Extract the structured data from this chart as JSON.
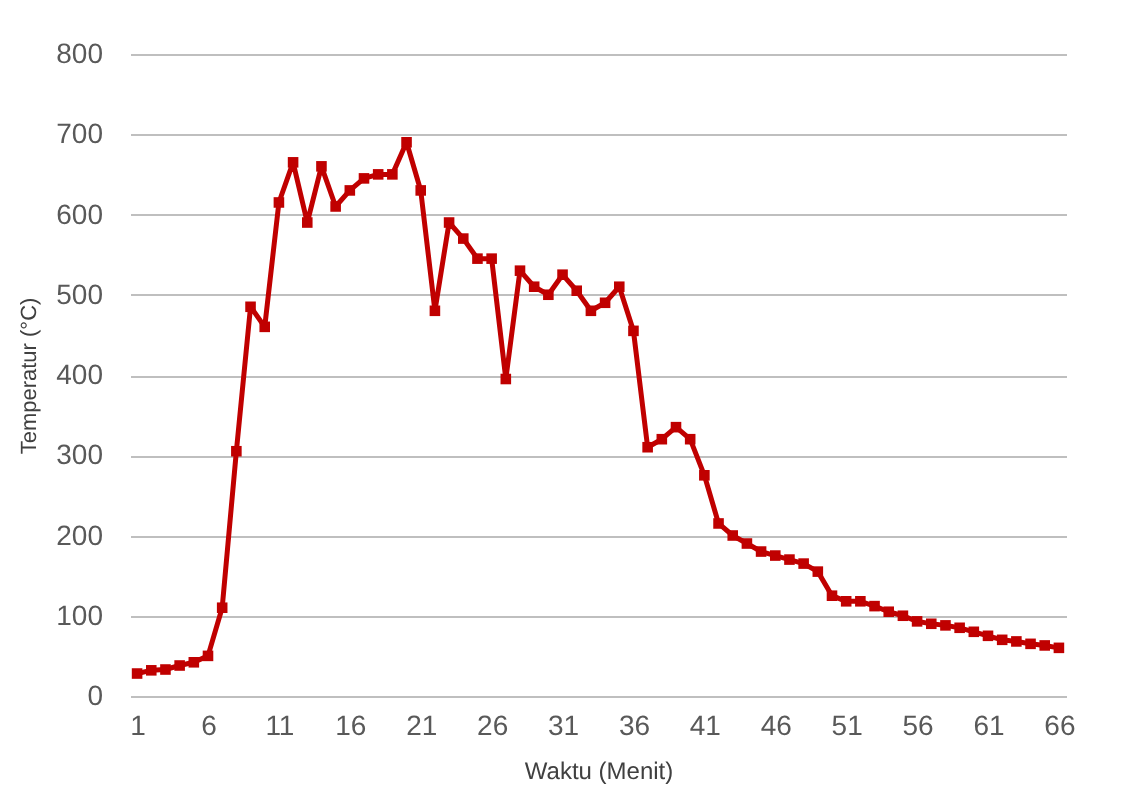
{
  "chart_data": {
    "type": "line",
    "xlabel": "Waktu (Menit)",
    "ylabel": "Temperatur (°C)",
    "x": [
      1,
      2,
      3,
      4,
      5,
      6,
      7,
      8,
      9,
      10,
      11,
      12,
      13,
      14,
      15,
      16,
      17,
      18,
      19,
      20,
      21,
      22,
      23,
      24,
      25,
      26,
      27,
      28,
      29,
      30,
      31,
      32,
      33,
      34,
      35,
      36,
      37,
      38,
      39,
      40,
      41,
      42,
      43,
      44,
      45,
      46,
      47,
      48,
      49,
      50,
      51,
      52,
      53,
      54,
      55,
      56,
      57,
      58,
      59,
      60,
      61,
      62,
      63,
      64,
      65,
      66
    ],
    "series": [
      {
        "color": "#c00000",
        "values": [
          28,
          32,
          33,
          38,
          42,
          50,
          110,
          305,
          485,
          460,
          615,
          665,
          590,
          660,
          610,
          630,
          645,
          650,
          650,
          690,
          630,
          480,
          590,
          570,
          545,
          545,
          395,
          530,
          510,
          500,
          525,
          505,
          480,
          490,
          510,
          455,
          310,
          320,
          335,
          320,
          275,
          215,
          200,
          190,
          180,
          175,
          170,
          165,
          155,
          125,
          118,
          118,
          112,
          105,
          100,
          93,
          90,
          88,
          85,
          80,
          75,
          70,
          68,
          65,
          63,
          60
        ]
      }
    ],
    "xlim": [
      0.5,
      66.5
    ],
    "xticks": [
      1,
      6,
      11,
      16,
      21,
      26,
      31,
      36,
      41,
      46,
      51,
      56,
      61,
      66
    ],
    "ylim": [
      0,
      800
    ],
    "yticks": [
      0,
      100,
      200,
      300,
      400,
      500,
      600,
      700,
      800
    ],
    "grid": "y",
    "marker": "square",
    "line_style": "solid"
  }
}
